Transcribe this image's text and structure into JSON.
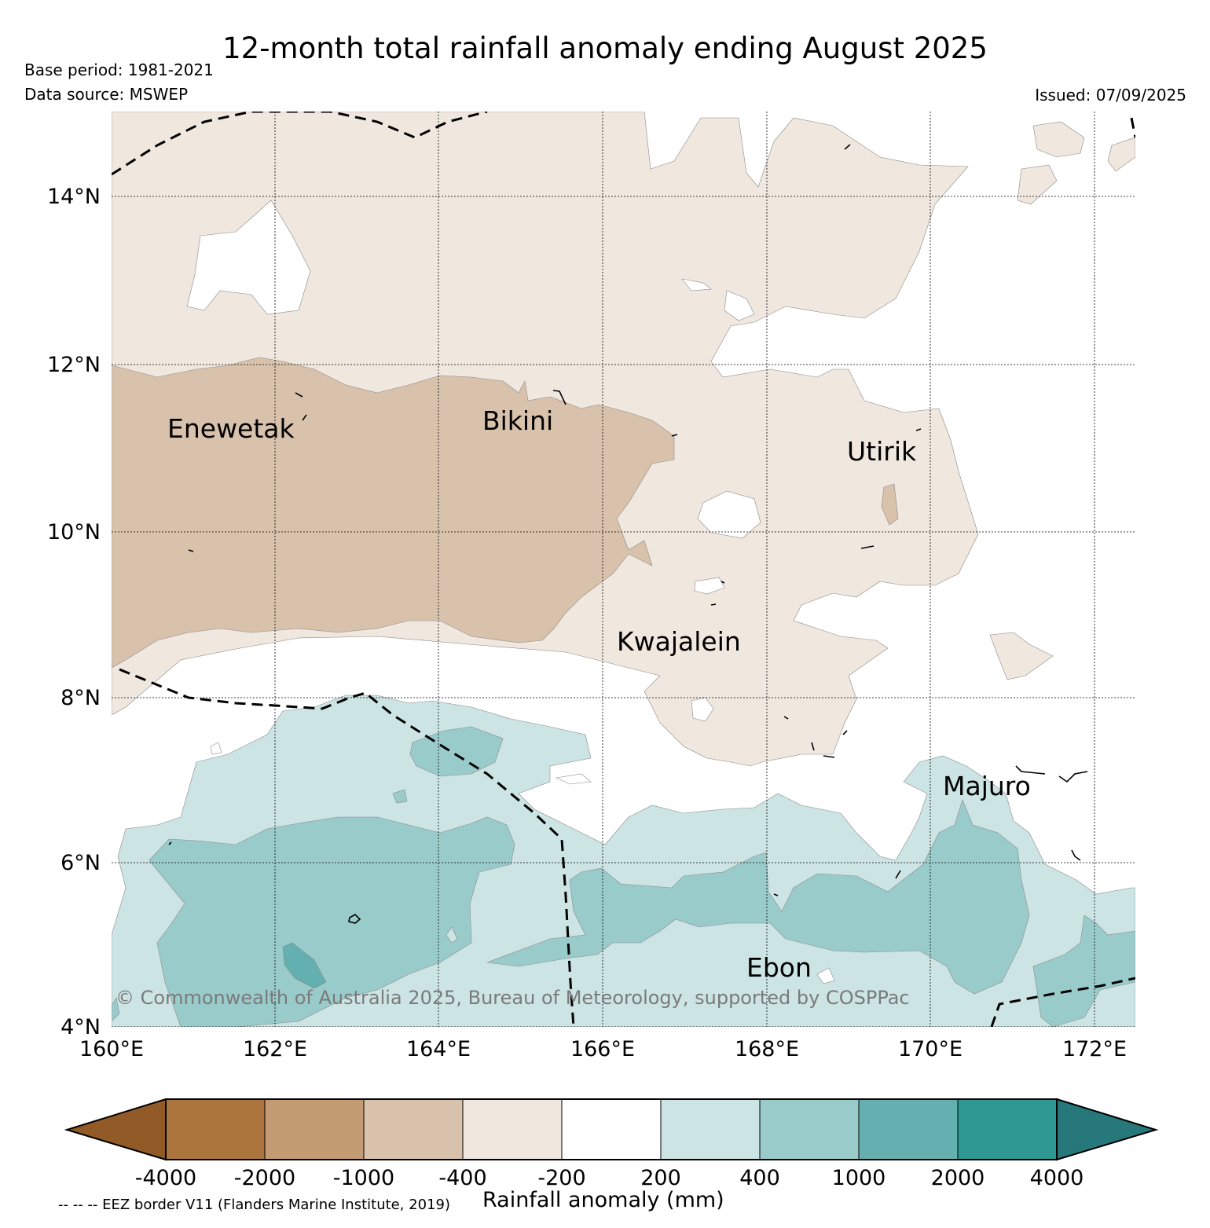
{
  "title": "12-month total rainfall anomaly ending August 2025",
  "meta": {
    "base_period": "Base period: 1981-2021",
    "data_source": "Data source: MSWEP",
    "issued": "Issued: 07/09/2025"
  },
  "map": {
    "lat_labels": [
      "14°N",
      "12°N",
      "10°N",
      "8°N",
      "6°N",
      "4°N"
    ],
    "lon_labels": [
      "160°E",
      "162°E",
      "164°E",
      "166°E",
      "168°E",
      "170°E",
      "172°E"
    ],
    "places": [
      {
        "name": "Enewetak"
      },
      {
        "name": "Bikini"
      },
      {
        "name": "Utirik"
      },
      {
        "name": "Kwajalein"
      },
      {
        "name": "Majuro"
      },
      {
        "name": "Ebon"
      }
    ],
    "copyright": "© Commonwealth of Australia 2025, Bureau of Meteorology, supported by COSPPac"
  },
  "colorbar": {
    "label": "Rainfall anomaly (mm)",
    "ticks": [
      "-4000",
      "-2000",
      "-1000",
      "-400",
      "-200",
      "200",
      "400",
      "1000",
      "2000",
      "4000"
    ],
    "colors": {
      "under": "#925a26",
      "bins": [
        "#ac753e",
        "#c39c74",
        "#d9c2ab",
        "#f0e7df",
        "#ffffff",
        "#cce4e4",
        "#9acbcb",
        "#64afaf",
        "#2e9892"
      ],
      "over": "#27787a"
    }
  },
  "footnote": "-- -- -- EEZ border V11 (Flanders Marine Institute, 2019)"
}
